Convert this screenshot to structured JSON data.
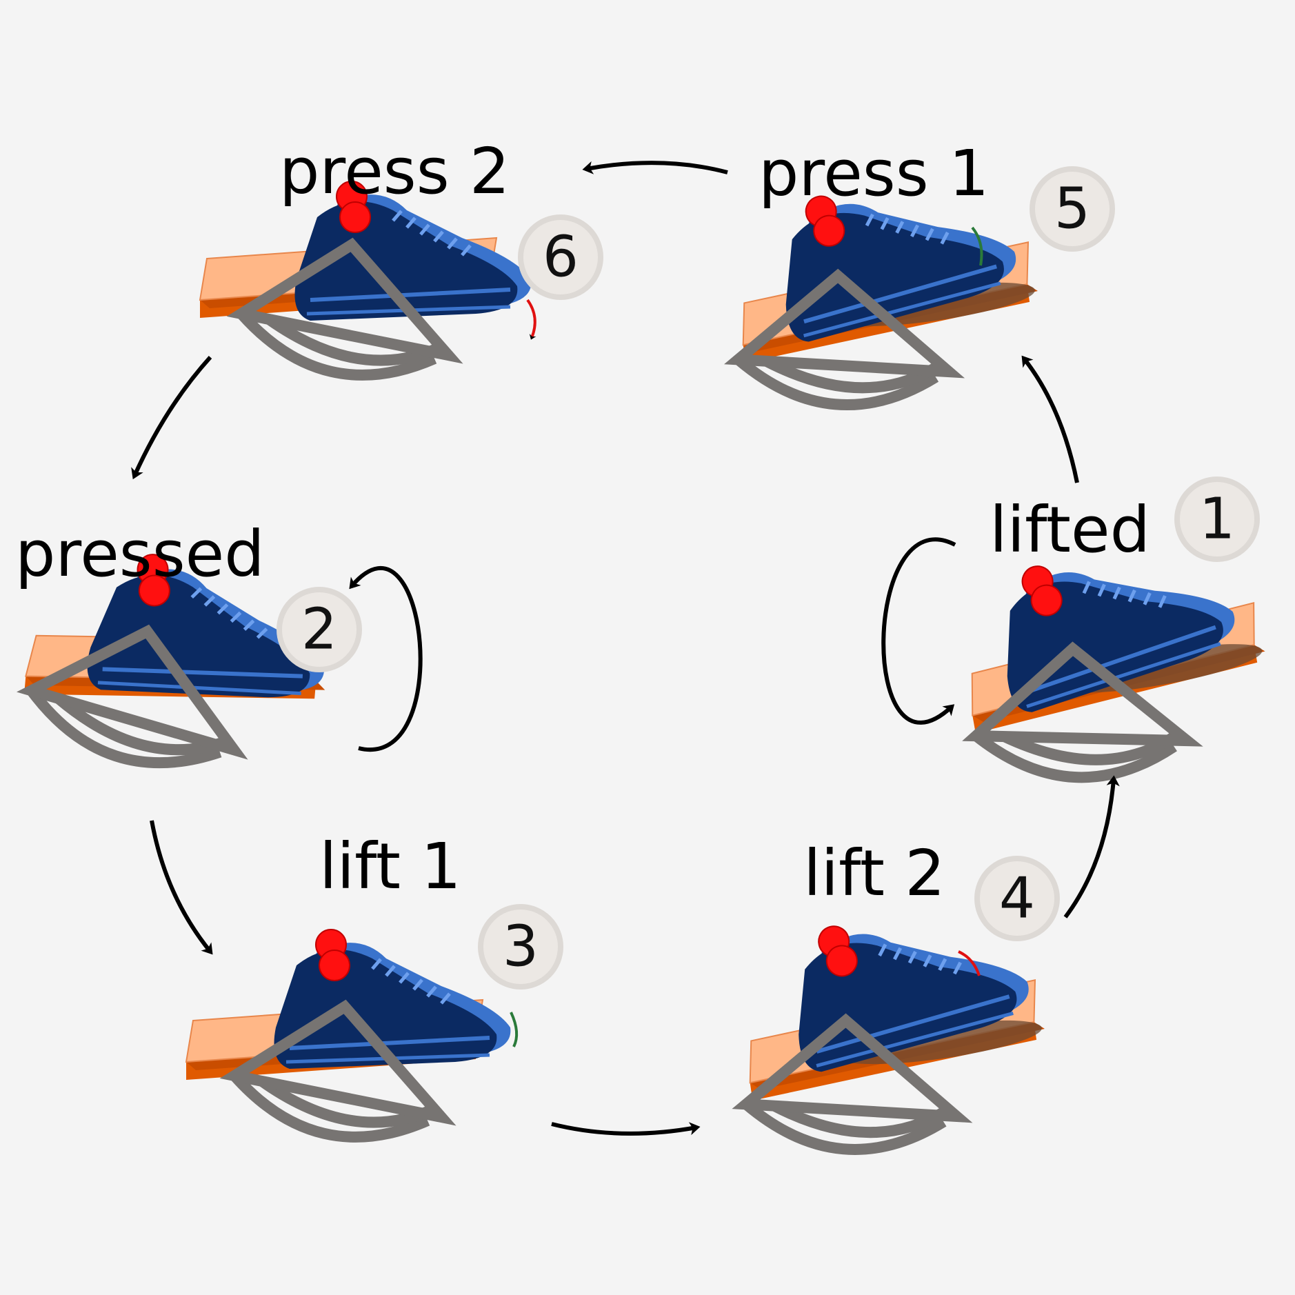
{
  "stages": [
    {
      "key": "press-2",
      "label": "press 2",
      "number": "6",
      "arrow_color": "#e01010"
    },
    {
      "key": "press-1",
      "label": "press 1",
      "number": "5",
      "arrow_color": "#2a7a3a"
    },
    {
      "key": "pressed",
      "label": "pressed",
      "number": "2",
      "arrow_color": ""
    },
    {
      "key": "lifted",
      "label": "lifted",
      "number": "1",
      "arrow_color": ""
    },
    {
      "key": "lift-1",
      "label": "lift 1",
      "number": "3",
      "arrow_color": "#2a7a3a"
    },
    {
      "key": "lift-2",
      "label": "lift 2",
      "number": "4",
      "arrow_color": "#e01010"
    }
  ],
  "colors": {
    "background": "#f4f4f4",
    "plate_top": "#ffb787",
    "plate_side": "#e05a00",
    "shoe_dark": "#0b2a62",
    "shoe_light": "#3a73cc",
    "hinge": "#ff1010",
    "mechanism": "#777472",
    "badge": "#ece8e4",
    "flow_arrow": "#000000"
  }
}
